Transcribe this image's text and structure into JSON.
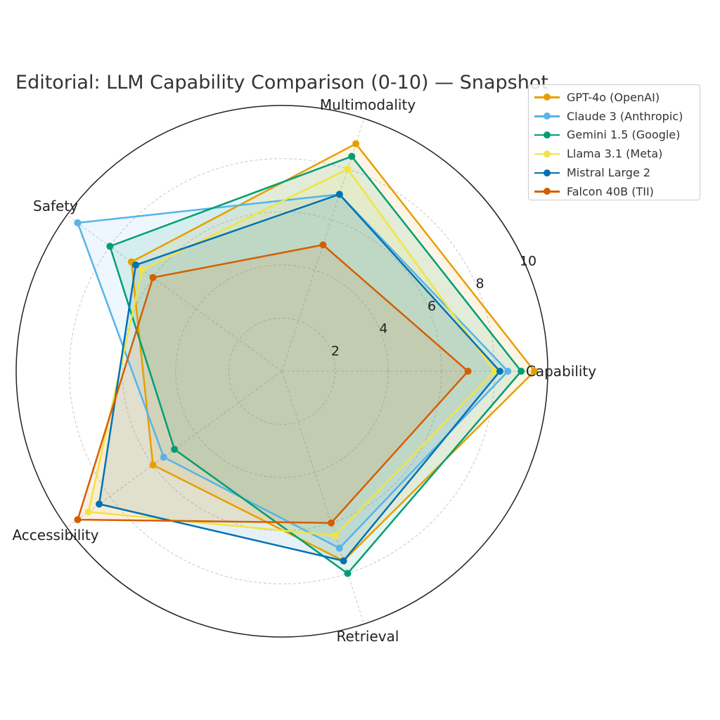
{
  "chart_data": {
    "type": "radar",
    "title": "Editorial: LLM Capability Comparison (0-10) — Snapshot",
    "axes": [
      "Capability",
      "Multimodality",
      "Safety",
      "Accessibility",
      "Retrieval"
    ],
    "rlim": [
      0,
      10
    ],
    "rticks": [
      "2",
      "4",
      "6",
      "8",
      "10"
    ],
    "rtick_values": [
      2,
      4,
      6,
      8,
      10
    ],
    "grid": true,
    "legend_position": "top-right",
    "series": [
      {
        "name": "GPT-4o (OpenAI)",
        "color": "#E69F00",
        "values": [
          9.5,
          9.0,
          7.0,
          6.0,
          7.5
        ]
      },
      {
        "name": "Claude 3 (Anthropic)",
        "color": "#56B4E9",
        "values": [
          8.5,
          7.0,
          9.5,
          5.5,
          7.0
        ]
      },
      {
        "name": "Gemini 1.5 (Google)",
        "color": "#009E73",
        "values": [
          9.0,
          8.5,
          8.0,
          5.0,
          8.0
        ]
      },
      {
        "name": "Llama 3.1 (Meta)",
        "color": "#F0E442",
        "values": [
          8.0,
          8.0,
          6.5,
          9.0,
          6.5
        ]
      },
      {
        "name": "Mistral Large 2",
        "color": "#0072B2",
        "values": [
          8.2,
          7.0,
          6.8,
          8.5,
          7.5
        ]
      },
      {
        "name": "Falcon 40B (TII)",
        "color": "#D55E00",
        "values": [
          7.0,
          5.0,
          6.0,
          9.5,
          6.0
        ]
      }
    ]
  }
}
